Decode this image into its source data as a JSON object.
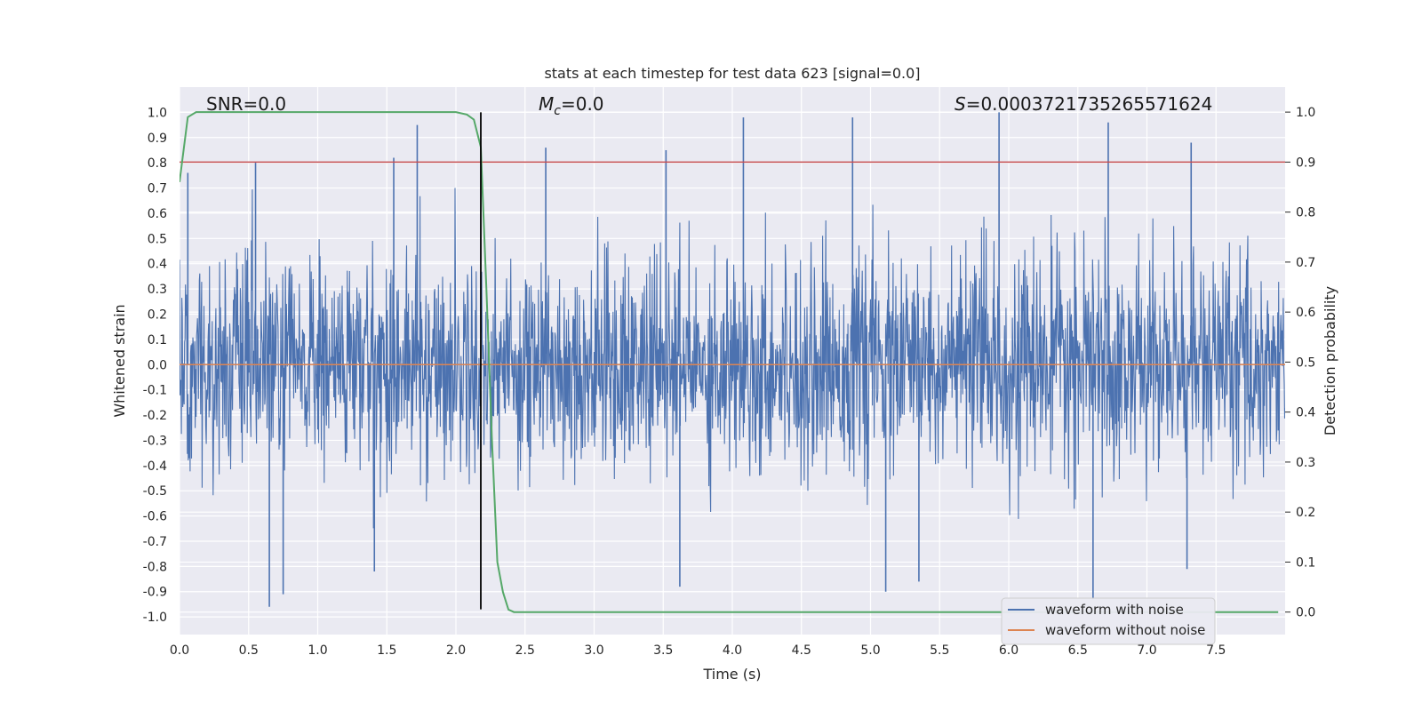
{
  "chart_data": {
    "type": "line",
    "title": "stats at each timestep for test data 623 [signal=0.0]",
    "xlabel": "Time (s)",
    "ylabel": "Whitened strain",
    "ylabel_right": "Detection probability",
    "xlim": [
      0.0,
      8.0
    ],
    "ylim": [
      -1.07,
      1.1
    ],
    "ylim_right": [
      -0.045,
      1.05
    ],
    "grid": true,
    "x_ticks": [
      "0.0",
      "0.5",
      "1.0",
      "1.5",
      "2.0",
      "2.5",
      "3.0",
      "3.5",
      "4.0",
      "4.5",
      "5.0",
      "5.5",
      "6.0",
      "6.5",
      "7.0",
      "7.5"
    ],
    "y_ticks": [
      "1.0",
      "0.9",
      "0.8",
      "0.7",
      "0.6",
      "0.5",
      "0.4",
      "0.3",
      "0.2",
      "0.1",
      "0.0",
      "-0.1",
      "-0.2",
      "-0.3",
      "-0.4",
      "-0.5",
      "-0.6",
      "-0.7",
      "-0.8",
      "-0.9",
      "-1.0"
    ],
    "y_ticks_right": [
      "1.0",
      "0.9",
      "0.8",
      "0.7",
      "0.6",
      "0.5",
      "0.4",
      "0.3",
      "0.2",
      "0.1",
      "0.0"
    ],
    "annotations": {
      "snr": "SNR=0.0",
      "mc_symbol": "M",
      "mc_sub": "c",
      "mc_value": "=0.0",
      "s_symbol": "S",
      "s_value": "=0.0003721735265571624"
    },
    "legend": {
      "position": "lower-right",
      "entries": [
        {
          "label": "waveform with noise",
          "color": "#4c72b0"
        },
        {
          "label": "waveform without noise",
          "color": "#dd8452"
        }
      ]
    },
    "series": [
      {
        "name": "waveform with noise",
        "color": "#4c72b0",
        "noise_sigma": 0.21,
        "note": "dense whitened noise trace, amplitude roughly within -0.96 to 0.98",
        "peaks": [
          {
            "x": 0.06,
            "y": 0.76
          },
          {
            "x": 0.55,
            "y": 0.8
          },
          {
            "x": 1.55,
            "y": 0.82
          },
          {
            "x": 1.72,
            "y": 0.95
          },
          {
            "x": 2.65,
            "y": 0.86
          },
          {
            "x": 3.52,
            "y": 0.85
          },
          {
            "x": 4.08,
            "y": 0.98
          },
          {
            "x": 4.87,
            "y": 0.98
          },
          {
            "x": 5.93,
            "y": 1.0
          },
          {
            "x": 6.72,
            "y": 0.96
          },
          {
            "x": 7.32,
            "y": 0.88
          },
          {
            "x": 0.65,
            "y": -0.96
          },
          {
            "x": 0.75,
            "y": -0.91
          },
          {
            "x": 1.41,
            "y": -0.82
          },
          {
            "x": 3.62,
            "y": -0.88
          },
          {
            "x": 5.11,
            "y": -0.9
          },
          {
            "x": 5.35,
            "y": -0.86
          },
          {
            "x": 6.61,
            "y": -0.93
          },
          {
            "x": 7.29,
            "y": -0.81
          }
        ]
      },
      {
        "name": "waveform without noise",
        "color": "#dd8452",
        "x": [
          0.0,
          8.0
        ],
        "y": [
          0.0,
          0.0
        ]
      },
      {
        "name": "detection probability",
        "axis": "right",
        "color": "#55a868",
        "x": [
          0.0,
          0.06,
          0.12,
          0.5,
          1.0,
          1.5,
          1.9,
          2.0,
          2.08,
          2.13,
          2.18,
          2.22,
          2.26,
          2.3,
          2.34,
          2.38,
          2.42,
          2.5,
          3.0,
          4.0,
          5.0,
          6.0,
          7.0,
          7.95
        ],
        "y": [
          0.86,
          0.99,
          1.0,
          1.0,
          1.0,
          1.0,
          1.0,
          1.0,
          0.995,
          0.985,
          0.93,
          0.65,
          0.35,
          0.1,
          0.04,
          0.005,
          0.0,
          0.0,
          0.0,
          0.0,
          0.0,
          0.0,
          0.0,
          0.0
        ]
      },
      {
        "name": "threshold",
        "axis": "right",
        "color": "#c44e52",
        "x": [
          0.0,
          8.0
        ],
        "y": [
          0.9,
          0.9
        ]
      },
      {
        "name": "trigger marker",
        "color": "#000000",
        "type": "vline",
        "x": 2.18,
        "y_range": [
          -0.97,
          1.0
        ]
      }
    ]
  }
}
